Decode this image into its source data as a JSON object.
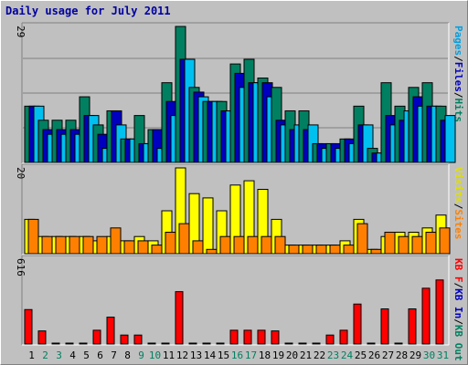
{
  "chart_data": {
    "type": "bar",
    "title": "Daily usage for July 2011",
    "categories": [
      "1",
      "2",
      "3",
      "4",
      "5",
      "6",
      "7",
      "8",
      "9",
      "10",
      "11",
      "12",
      "13",
      "14",
      "15",
      "16",
      "17",
      "18",
      "19",
      "20",
      "21",
      "22",
      "23",
      "24",
      "25",
      "26",
      "27",
      "28",
      "29",
      "30",
      "31"
    ],
    "weekend_days": [
      "2",
      "3",
      "9",
      "10",
      "16",
      "17",
      "23",
      "24",
      "30",
      "31"
    ],
    "panels": [
      {
        "max_label": "29",
        "legend": [
          "Pages",
          "/",
          "Files",
          "/",
          "Hits"
        ],
        "legend_colors": [
          "#00a0e0",
          "#000000",
          "#0000c0",
          "#000000",
          "#008060"
        ],
        "series": [
          {
            "name": "Hits",
            "color": "#008060",
            "values": [
              12,
              9,
              9,
              9,
              14,
              8,
              11,
              5,
              10,
              7,
              17,
              29,
              16,
              13,
              13,
              21,
              22,
              18,
              16,
              11,
              11,
              4,
              4,
              5,
              12,
              3,
              17,
              12,
              16,
              17,
              12
            ]
          },
          {
            "name": "Files",
            "color": "#0000c0",
            "values": [
              12,
              7,
              7,
              7,
              10,
              6,
              11,
              5,
              4,
              7,
              13,
              22,
              15,
              13,
              11,
              19,
              17,
              17,
              9,
              7,
              7,
              4,
              4,
              5,
              8,
              2,
              10,
              9,
              14,
              12,
              9
            ]
          },
          {
            "name": "Pages",
            "color": "#00c0f0",
            "values": [
              12,
              6,
              6,
              6,
              10,
              3,
              8,
              5,
              4,
              3,
              10,
              22,
              14,
              13,
              11,
              16,
              17,
              14,
              8,
              8,
              8,
              3,
              3,
              4,
              8,
              2,
              8,
              11,
              12,
              12,
              10
            ]
          }
        ]
      },
      {
        "max_label": "20",
        "legend": [
          "Visits",
          "/",
          "Sites"
        ],
        "legend_colors": [
          "#e0e000",
          "#000000",
          "#ff8000"
        ],
        "series": [
          {
            "name": "Visits",
            "color": "#ffff00",
            "values": [
              8,
              4,
              4,
              4,
              4,
              3,
              4,
              3,
              4,
              3,
              10,
              20,
              14,
              13,
              10,
              16,
              17,
              15,
              8,
              2,
              2,
              2,
              2,
              3,
              8,
              1,
              4,
              5,
              5,
              6,
              9
            ]
          },
          {
            "name": "Sites",
            "color": "#ff8000",
            "values": [
              8,
              4,
              4,
              4,
              4,
              4,
              6,
              3,
              3,
              2,
              5,
              7,
              3,
              1,
              4,
              4,
              4,
              4,
              4,
              2,
              2,
              2,
              2,
              2,
              7,
              1,
              5,
              4,
              4,
              5,
              6
            ]
          }
        ]
      },
      {
        "max_label": "616",
        "legend": [
          "KB F",
          "/",
          "KB In",
          "/",
          "KB Out"
        ],
        "legend_colors": [
          "#ff0000",
          "#000000",
          "#0000c0",
          "#000000",
          "#008060"
        ],
        "series": [
          {
            "name": "KB F",
            "color": "#ff0000",
            "values": [
              250,
              95,
              5,
              5,
              5,
              100,
              195,
              65,
              65,
              5,
              5,
              380,
              5,
              5,
              5,
              100,
              100,
              100,
              95,
              5,
              5,
              5,
              65,
              100,
              290,
              5,
              255,
              5,
              255,
              405,
              465
            ]
          }
        ],
        "ylim": [
          0,
          616
        ]
      }
    ]
  }
}
